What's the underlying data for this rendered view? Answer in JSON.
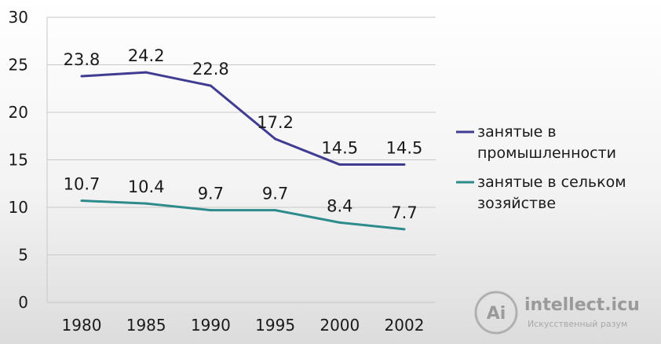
{
  "chart_data": {
    "type": "line",
    "title": "",
    "xlabel": "",
    "ylabel": "",
    "categories": [
      "1980",
      "1985",
      "1990",
      "1995",
      "2000",
      "2002"
    ],
    "ylim": [
      0,
      30
    ],
    "yticks": [
      0,
      5,
      10,
      15,
      20,
      25,
      30
    ],
    "grid": "horizontal",
    "legend_position": "right",
    "series": [
      {
        "name": "занятые в промышленности",
        "name_lines": [
          "занятые в",
          "промышленности"
        ],
        "color": "#3f3c91",
        "values": [
          23.8,
          24.2,
          22.8,
          17.2,
          14.5,
          14.5
        ],
        "labels": [
          "23.8",
          "24.2",
          "22.8",
          "17.2",
          "14.5",
          "14.5"
        ]
      },
      {
        "name": "занятые в сельком зозяйстве",
        "name_lines": [
          "занятые в сельком",
          "зозяйстве"
        ],
        "color": "#2e8b8b",
        "values": [
          10.7,
          10.4,
          9.7,
          9.7,
          8.4,
          7.7
        ],
        "labels": [
          "10.7",
          "10.4",
          "9.7",
          "9.7",
          "8.4",
          "7.7"
        ]
      }
    ]
  },
  "watermark": {
    "logo_text": "Ai",
    "site": "intellect.icu",
    "tagline": "Искусственный разум",
    "logo_color": "#b0b0b0"
  }
}
